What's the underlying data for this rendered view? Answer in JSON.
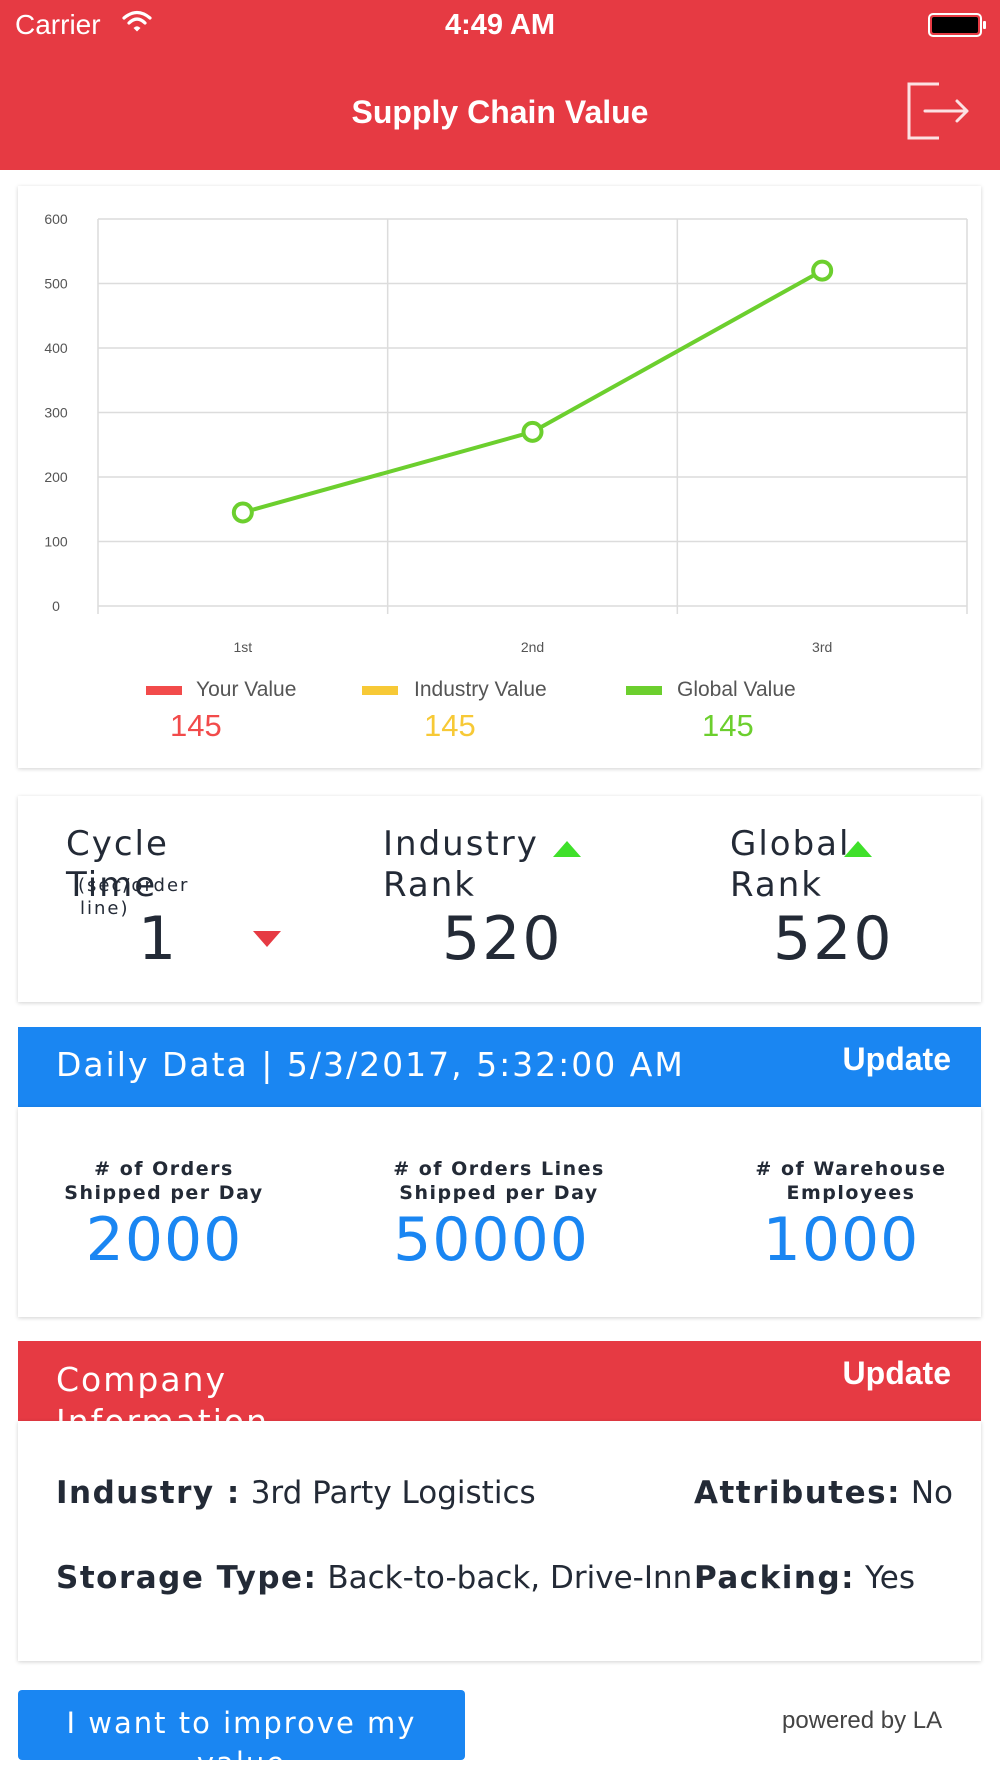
{
  "status_bar": {
    "carrier": "Carrier",
    "time": "4:49 AM"
  },
  "nav": {
    "title": "Supply Chain Value",
    "logout_icon": "logout-icon"
  },
  "chart_data": {
    "type": "line",
    "categories": [
      "1st",
      "2nd",
      "3rd"
    ],
    "series": [
      {
        "name": "Global Value",
        "values": [
          145,
          270,
          520
        ],
        "color": "#6ccf2e"
      }
    ],
    "y_ticks": [
      0,
      100,
      200,
      300,
      400,
      500,
      600
    ],
    "ylim": [
      0,
      600
    ],
    "grid": true,
    "legend": [
      {
        "label": "Your Value",
        "value": "145",
        "color": "#f24b4b"
      },
      {
        "label": "Industry Value",
        "value": "145",
        "color": "#f7c936"
      },
      {
        "label": "Global Value",
        "value": "145",
        "color": "#6ccf2e"
      }
    ]
  },
  "ranks": {
    "cycle": {
      "label_line1": "Cycle",
      "label_line2": "Time",
      "sub_line1": "(sec/order",
      "sub_line2": "line)",
      "value": "1",
      "trend": "down"
    },
    "industry": {
      "label_line1": "Industry",
      "label_line2": "Rank",
      "value": "520",
      "trend": "up"
    },
    "global": {
      "label_line1": "Global",
      "label_line2": "Rank",
      "value": "520",
      "trend": "up"
    }
  },
  "daily": {
    "title": "Daily Data | 5/3/2017, 5:32:00 AM",
    "update_label": "Update",
    "metrics": [
      {
        "label_line1": "# of Orders",
        "label_line2": "Shipped per Day",
        "value": "2000"
      },
      {
        "label_line1": "# of Orders Lines",
        "label_line2": "Shipped per Day",
        "value": "50000"
      },
      {
        "label_line1": "# of Warehouse",
        "label_line2": "Employees",
        "value": "1000"
      }
    ]
  },
  "company": {
    "title_line1": "Company",
    "title_line2": "Information",
    "update_label": "Update",
    "industry_key": "Industry :",
    "industry_val": "3rd Party Logistics",
    "attributes_key": "Attributes:",
    "attributes_val": "No",
    "storage_key": "Storage Type:",
    "storage_val": "Back-to-back, Drive-Inn",
    "packing_key": "Packing:",
    "packing_val": "Yes"
  },
  "footer": {
    "improve_line1": "I want to improve my",
    "improve_line2": "value",
    "powered": "powered by LA"
  }
}
